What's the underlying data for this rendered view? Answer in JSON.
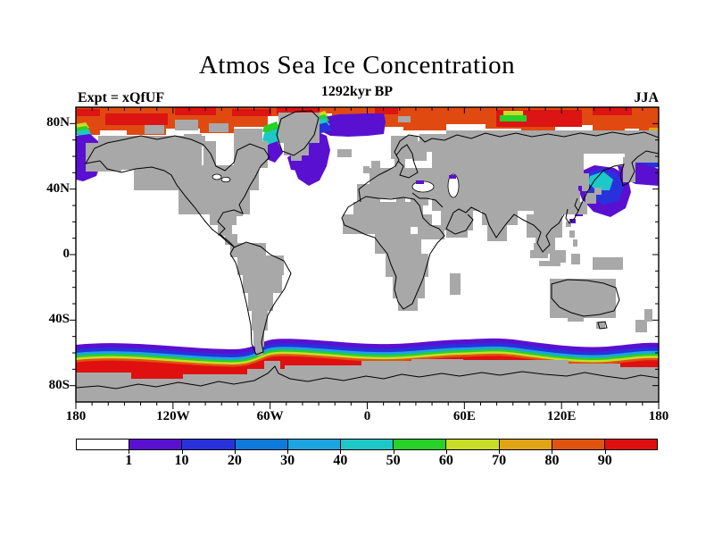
{
  "header": {
    "title": "Atmos Sea Ice Concentration",
    "subtitle": "1292kyr BP",
    "experiment": "Expt = xQfUF",
    "season": "JJA"
  },
  "axes": {
    "y": {
      "labels": [
        "80N",
        "40N",
        "0",
        "40S",
        "80S"
      ],
      "degrees": [
        80,
        40,
        0,
        -40,
        -80
      ]
    },
    "x": {
      "labels": [
        "180",
        "120W",
        "60W",
        "0",
        "60E",
        "120E",
        "180"
      ],
      "degrees": [
        -180,
        -120,
        -60,
        0,
        60,
        120,
        180
      ]
    }
  },
  "colorbar": {
    "labels": [
      "1",
      "10",
      "20",
      "30",
      "40",
      "50",
      "60",
      "70",
      "80",
      "90"
    ],
    "colors": [
      "#FFFFFF",
      "#5A10D0",
      "#2832DC",
      "#0E7ADC",
      "#1CA4E0",
      "#1EC8C8",
      "#28D028",
      "#C8DC28",
      "#E0A414",
      "#E05410",
      "#E01010"
    ]
  },
  "map": {
    "land_color": "#A8A8A8",
    "ocean_color": "#FFFFFF",
    "coastline_color": "#000000"
  },
  "chart_data": {
    "type": "filled_contour_map",
    "title": "Atmos Sea Ice Concentration",
    "subtitle": "1292kyr BP",
    "experiment": "xQfUF",
    "season": "JJA",
    "variable": "sea ice concentration (%)",
    "projection": "equirectangular",
    "lon_range": [
      -180,
      180
    ],
    "lat_range": [
      -90,
      90
    ],
    "contour_levels": [
      1,
      10,
      20,
      30,
      40,
      50,
      60,
      70,
      80,
      90
    ],
    "palette": [
      "#FFFFFF",
      "#5A10D0",
      "#2832DC",
      "#0E7ADC",
      "#1CA4E0",
      "#1EC8C8",
      "#28D028",
      "#C8DC28",
      "#E0A414",
      "#E05410",
      "#E01010"
    ],
    "x_ticks": [
      "180",
      "120W",
      "60W",
      "0",
      "60E",
      "120E",
      "180"
    ],
    "y_ticks": [
      "80N",
      "40N",
      "0",
      "40S",
      "80S"
    ],
    "legend_position": "bottom",
    "grid": false,
    "features": [
      "Arctic Ocean filled with 80-100% concentration (orange/red) north of about 72-78N",
      "Rainbow ice-edge gradient sweeping through the Greenland/Norwegian Sea with a 1-10% (purple) tongue reaching ~60N",
      "Low concentration (1-30%) purple/blue fringes along the Bering Sea, Sea of Okhotsk and NE Pacific coasts",
      "Small 1-10% patches on the northern Black Sea and Caspian Sea",
      "Circumpolar Antarctic band grading from 1% (purple) near ~55S through blue/cyan/green/yellow/orange to 90-100% red at the coast",
      "Continents drawn as gray grid-box mask with black coastline contours; ice-free ocean is white"
    ]
  }
}
